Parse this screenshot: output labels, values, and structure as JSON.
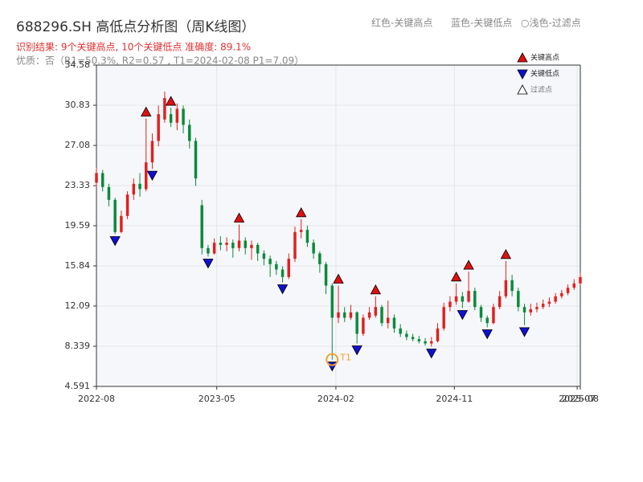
{
  "chart_data": {
    "type": "candlestick",
    "title": "688296.SH 高低点分析图（周K线图）",
    "subtitle": "识别结果: 9个关键高点, 10个关键低点  准确度: 89.1%",
    "note": "优质：否（R1=50.3%, R2=0.57 , T1=2024-02-08 P1=7.09）",
    "header_legend": [
      "红色-关键高点",
      "蓝色-关键低点",
      "○浅色-过滤点"
    ],
    "legend": {
      "position": "upper right",
      "entries": [
        {
          "name": "关键高点",
          "color": "#e01010"
        },
        {
          "name": "关键低点",
          "color": "#1010d0"
        },
        {
          "name": "过滤点",
          "color": "#ffffff"
        }
      ]
    },
    "up_color": "#e0211f",
    "down_color": "#0a8a3a",
    "open": [
      23.6,
      24.5,
      23.2,
      22.0,
      19.0,
      20.5,
      22.5,
      23.5,
      23.0,
      25.5,
      27.5,
      29.5,
      30.0,
      29.2,
      30.5,
      29.0,
      27.5,
      21.5,
      17.5,
      17.0,
      18.0,
      17.8,
      18.0,
      17.5,
      18.2,
      17.5,
      17.8,
      17.0,
      16.5,
      16.0,
      15.5,
      14.8,
      16.5,
      19.0,
      19.2,
      18.0,
      17.0,
      16.0,
      14.0,
      11.0,
      11.5,
      11.0,
      11.5,
      9.5,
      11.0,
      11.2,
      12.0,
      10.5,
      11.0,
      10.0,
      9.5,
      9.2,
      9.0,
      8.8,
      8.6,
      8.8,
      10.0,
      12.0,
      12.5,
      13.0,
      12.5,
      13.5,
      12.0,
      11.0,
      10.5,
      12.0,
      13.0,
      14.5,
      13.5,
      12.0,
      11.5,
      11.8,
      12.0,
      12.3,
      12.5,
      13.0,
      13.3,
      13.8,
      14.2
    ],
    "close": [
      24.5,
      23.2,
      22.0,
      19.0,
      20.5,
      22.5,
      23.5,
      23.0,
      25.5,
      27.5,
      30.0,
      31.5,
      29.2,
      30.5,
      29.0,
      27.5,
      24.0,
      17.5,
      17.0,
      18.0,
      17.8,
      18.0,
      17.5,
      18.2,
      17.5,
      17.8,
      17.0,
      16.5,
      16.0,
      15.5,
      14.8,
      16.5,
      19.0,
      19.2,
      18.0,
      17.0,
      16.0,
      14.0,
      11.0,
      11.5,
      11.0,
      11.5,
      9.5,
      11.0,
      11.5,
      12.0,
      10.5,
      11.0,
      10.0,
      9.5,
      9.2,
      9.0,
      8.8,
      8.6,
      8.8,
      10.0,
      12.0,
      12.5,
      13.0,
      12.5,
      13.5,
      12.0,
      11.0,
      10.5,
      12.0,
      13.0,
      14.5,
      13.5,
      12.0,
      11.5,
      11.8,
      12.0,
      12.3,
      12.5,
      13.0,
      13.3,
      13.8,
      14.2,
      14.8
    ],
    "high": [
      25.0,
      24.8,
      23.5,
      22.2,
      21.0,
      22.8,
      24.0,
      24.5,
      29.6,
      28.2,
      30.8,
      32.1,
      30.6,
      31.0,
      30.8,
      29.5,
      27.8,
      22.0,
      17.8,
      18.4,
      18.6,
      18.5,
      18.3,
      19.7,
      18.5,
      18.2,
      18.0,
      17.3,
      16.8,
      16.3,
      15.8,
      17.0,
      19.5,
      20.2,
      19.6,
      18.3,
      17.2,
      16.2,
      14.2,
      14.0,
      12.0,
      12.2,
      11.6,
      11.3,
      12.0,
      13.0,
      12.2,
      12.6,
      11.3,
      10.4,
      9.8,
      9.5,
      9.3,
      9.1,
      9.2,
      10.5,
      12.4,
      13.0,
      14.2,
      13.4,
      15.3,
      13.8,
      12.2,
      11.2,
      12.3,
      13.5,
      16.3,
      15.0,
      13.8,
      12.3,
      12.3,
      12.4,
      12.7,
      12.9,
      13.3,
      13.6,
      14.1,
      14.6,
      15.2
    ],
    "low": [
      23.2,
      22.8,
      21.4,
      18.8,
      18.9,
      20.2,
      22.0,
      22.3,
      22.8,
      24.9,
      27.0,
      29.2,
      28.8,
      28.5,
      28.2,
      26.8,
      23.3,
      16.9,
      16.7,
      16.9,
      17.3,
      17.2,
      16.6,
      17.2,
      16.9,
      16.4,
      16.3,
      15.9,
      14.8,
      15.0,
      14.3,
      14.6,
      16.2,
      18.4,
      17.6,
      16.5,
      15.2,
      13.2,
      7.09,
      10.5,
      10.6,
      10.8,
      8.6,
      9.3,
      10.8,
      11.0,
      10.2,
      10.0,
      9.6,
      9.2,
      8.9,
      8.8,
      8.6,
      8.4,
      8.3,
      8.7,
      9.8,
      11.6,
      12.2,
      11.9,
      12.4,
      11.7,
      10.6,
      10.1,
      10.4,
      11.8,
      12.8,
      13.0,
      11.6,
      10.3,
      11.2,
      11.5,
      11.8,
      12.0,
      12.3,
      12.8,
      13.1,
      13.6,
      14.0
    ],
    "key_highs": [
      {
        "x": 8,
        "value": 29.6
      },
      {
        "x": 12,
        "value": 30.6
      },
      {
        "x": 23,
        "value": 19.7
      },
      {
        "x": 33,
        "value": 20.2
      },
      {
        "x": 39,
        "value": 14.0
      },
      {
        "x": 45,
        "value": 13.0
      },
      {
        "x": 58,
        "value": 14.2
      },
      {
        "x": 60,
        "value": 15.3
      },
      {
        "x": 66,
        "value": 16.3
      }
    ],
    "key_lows": [
      {
        "x": 3,
        "value": 18.8
      },
      {
        "x": 9,
        "value": 24.9
      },
      {
        "x": 18,
        "value": 16.7
      },
      {
        "x": 30,
        "value": 14.3
      },
      {
        "x": 38,
        "value": 7.09
      },
      {
        "x": 42,
        "value": 8.6
      },
      {
        "x": 54,
        "value": 8.3
      },
      {
        "x": 59,
        "value": 11.9
      },
      {
        "x": 63,
        "value": 10.1
      },
      {
        "x": 69,
        "value": 10.3
      }
    ],
    "annotation": {
      "text": "T1",
      "x": 38,
      "value": 7.09,
      "color": "#f0a030"
    },
    "xlim": [
      0,
      78
    ],
    "xticks": [
      {
        "value": 0,
        "label": "2022-08"
      },
      {
        "value": 19.4,
        "label": "2023-05"
      },
      {
        "value": 38.6,
        "label": "2024-02"
      },
      {
        "value": 57.7,
        "label": "2024-11"
      },
      {
        "value": 77.5,
        "label": "2025-07"
      },
      {
        "value": 78,
        "label": "2025-08"
      }
    ],
    "ylim": [
      4.591,
      34.58
    ],
    "yticks": [
      4.591,
      8.339,
      12.09,
      15.84,
      19.59,
      23.33,
      27.08,
      30.83,
      34.58
    ],
    "grid": true
  }
}
